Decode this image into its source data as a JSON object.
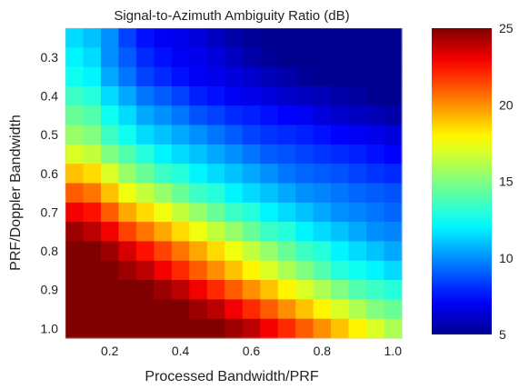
{
  "chart_data": {
    "type": "heatmap",
    "title": "Signal-to-Azimuth Ambiguity Ratio (dB)",
    "xlabel": "Processed Bandwidth/PRF",
    "ylabel": "PRF/Doppler Bandwidth",
    "x_ticks": [
      "0.2",
      "0.4",
      "0.6",
      "0.8",
      "1.0"
    ],
    "y_ticks": [
      "0.3",
      "0.4",
      "0.5",
      "0.6",
      "0.7",
      "0.8",
      "0.9",
      "1.0"
    ],
    "colorbar": {
      "min": 5,
      "max": 25,
      "ticks": [
        "5",
        "10",
        "15",
        "20",
        "25"
      ],
      "colormap": "jet"
    },
    "x_values": [
      0.1,
      0.15,
      0.2,
      0.25,
      0.3,
      0.35,
      0.4,
      0.45,
      0.5,
      0.55,
      0.6,
      0.65,
      0.7,
      0.75,
      0.8,
      0.85,
      0.9,
      0.95,
      1.0
    ],
    "y_values": [
      0.25,
      0.3,
      0.35,
      0.4,
      0.45,
      0.5,
      0.55,
      0.6,
      0.65,
      0.7,
      0.75,
      0.8,
      0.85,
      0.9,
      0.95,
      1.0
    ],
    "values": [
      [
        11.5,
        11.0,
        10.0,
        8.5,
        7.5,
        7.0,
        6.8,
        6.5,
        6.0,
        5.5,
        5.2,
        5.0,
        5.0,
        5.0,
        5.0,
        5.0,
        5.0,
        5.0,
        5.0
      ],
      [
        12.0,
        11.5,
        10.0,
        9.0,
        8.0,
        7.5,
        7.0,
        6.8,
        6.5,
        6.0,
        5.5,
        5.2,
        5.0,
        5.0,
        5.0,
        5.0,
        5.0,
        5.0,
        5.0
      ],
      [
        12.5,
        12.0,
        10.5,
        9.5,
        8.5,
        8.0,
        7.5,
        7.0,
        6.8,
        6.5,
        6.2,
        5.8,
        5.5,
        5.2,
        5.0,
        5.0,
        5.0,
        5.0,
        5.0
      ],
      [
        13.5,
        13.0,
        11.5,
        10.5,
        9.5,
        9.0,
        8.5,
        7.8,
        7.5,
        7.0,
        6.8,
        6.5,
        6.2,
        6.0,
        5.8,
        5.5,
        5.3,
        5.0,
        5.0
      ],
      [
        14.5,
        14.0,
        12.5,
        11.5,
        10.5,
        10.0,
        9.5,
        8.8,
        8.5,
        8.0,
        7.8,
        7.5,
        7.2,
        7.0,
        6.5,
        6.2,
        6.0,
        5.8,
        5.5
      ],
      [
        15.5,
        15.0,
        13.5,
        12.5,
        11.5,
        11.0,
        10.5,
        10.0,
        9.5,
        9.0,
        8.5,
        8.2,
        8.0,
        7.8,
        7.5,
        7.2,
        7.0,
        6.8,
        6.5
      ],
      [
        17.0,
        16.5,
        15.0,
        14.0,
        13.0,
        12.0,
        11.5,
        11.0,
        10.5,
        10.0,
        9.5,
        9.0,
        8.8,
        8.5,
        8.2,
        8.0,
        7.8,
        7.5,
        7.2
      ],
      [
        19.0,
        18.5,
        17.0,
        15.5,
        14.5,
        13.5,
        13.0,
        12.0,
        11.5,
        11.0,
        10.5,
        10.0,
        9.5,
        9.2,
        9.0,
        8.8,
        8.5,
        8.2,
        8.0
      ],
      [
        21.0,
        20.5,
        19.0,
        17.5,
        16.5,
        15.5,
        14.5,
        13.5,
        13.0,
        12.0,
        11.5,
        11.0,
        10.5,
        10.0,
        9.8,
        9.5,
        9.2,
        9.0,
        8.8
      ],
      [
        23.0,
        22.5,
        21.0,
        19.5,
        18.5,
        17.5,
        16.5,
        15.5,
        14.5,
        13.5,
        13.0,
        12.0,
        11.5,
        11.0,
        10.5,
        10.0,
        9.8,
        9.5,
        9.2
      ],
      [
        24.5,
        24.0,
        23.0,
        21.5,
        20.5,
        19.5,
        18.5,
        17.5,
        16.5,
        15.5,
        14.5,
        13.5,
        13.0,
        12.0,
        11.5,
        11.0,
        10.5,
        10.0,
        9.8
      ],
      [
        25.0,
        25.0,
        24.5,
        23.5,
        22.5,
        21.5,
        20.5,
        19.5,
        18.5,
        17.5,
        16.5,
        15.5,
        14.5,
        13.5,
        13.0,
        12.0,
        11.5,
        11.0,
        10.5
      ],
      [
        25.0,
        25.0,
        25.0,
        24.5,
        24.0,
        23.0,
        22.0,
        21.0,
        20.0,
        19.0,
        18.0,
        17.0,
        16.0,
        15.0,
        14.0,
        13.0,
        12.5,
        12.0,
        11.5
      ],
      [
        25.0,
        25.0,
        25.0,
        25.0,
        25.0,
        24.5,
        24.0,
        23.0,
        22.0,
        21.0,
        20.0,
        19.0,
        18.0,
        17.0,
        16.0,
        15.0,
        14.0,
        13.5,
        13.0
      ],
      [
        25.0,
        25.0,
        25.0,
        25.0,
        25.0,
        25.0,
        25.0,
        24.5,
        24.0,
        23.0,
        22.0,
        21.0,
        20.0,
        19.0,
        18.0,
        17.0,
        16.0,
        15.0,
        14.5
      ],
      [
        25.0,
        25.0,
        25.0,
        25.0,
        25.0,
        25.0,
        25.0,
        25.0,
        25.0,
        24.5,
        24.0,
        23.0,
        22.0,
        21.0,
        20.0,
        19.0,
        18.0,
        17.0,
        16.0
      ]
    ]
  }
}
